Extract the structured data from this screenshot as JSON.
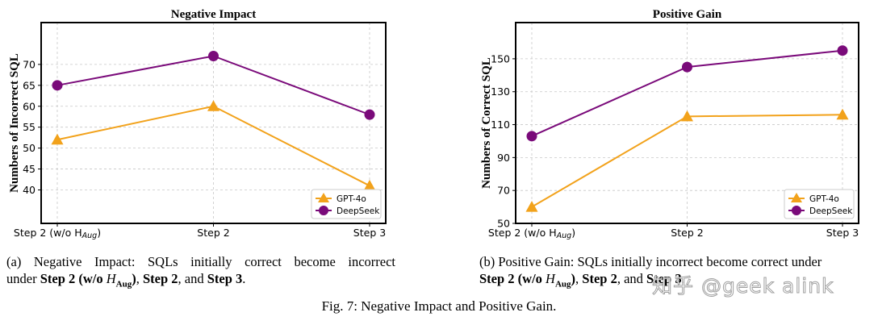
{
  "colors": {
    "gpt": "#f2a21b",
    "deepseek": "#7a0a7a",
    "grid": "#c8c8c8"
  },
  "chart_data": [
    {
      "type": "line",
      "title": "Negative Impact",
      "ylabel": "Numbers of Incorrect SQL",
      "categories": [
        "Step 2 (w/o H",
        "Step 2",
        "Step 3"
      ],
      "cat0_sub": "Aug",
      "cat0_close": ")",
      "ylim": [
        32,
        80
      ],
      "yticks": [
        40,
        45,
        50,
        55,
        60,
        65,
        70
      ],
      "series": [
        {
          "name": "GPT-4o",
          "values": [
            52,
            60,
            41
          ],
          "marker": "triangle"
        },
        {
          "name": "DeepSeek",
          "values": [
            65,
            72,
            58
          ],
          "marker": "circle"
        }
      ],
      "legend": "bottom-right",
      "grid": true
    },
    {
      "type": "line",
      "title": "Positive Gain",
      "ylabel": "Numbers of Correct SQL",
      "categories": [
        "Step 2 (w/o H",
        "Step 2",
        "Step 3"
      ],
      "cat0_sub": "Aug",
      "cat0_close": ")",
      "ylim": [
        50,
        172
      ],
      "yticks": [
        50,
        70,
        90,
        110,
        130,
        150
      ],
      "series": [
        {
          "name": "GPT-4o",
          "values": [
            60,
            115,
            116
          ],
          "marker": "triangle"
        },
        {
          "name": "DeepSeek",
          "values": [
            103,
            145,
            155
          ],
          "marker": "circle"
        }
      ],
      "legend": "bottom-right",
      "grid": true
    }
  ],
  "captions": {
    "a": {
      "prefix": "(a) Negative Impact: SQLs initially correct become incorrect",
      "line2_pre": "under ",
      "b1": "Step 2 (w/o ",
      "h": "H",
      "sub": "Aug",
      "b1_close": ")",
      "sep1": ", ",
      "b2": "Step 2",
      "sep2": ", and ",
      "b3": "Step 3",
      "end": "."
    },
    "b": {
      "prefix": "(b) Positive Gain: SQLs initially incorrect become correct under",
      "b1": "Step 2 (w/o ",
      "h": "H",
      "sub": "Aug",
      "b1_close": ")",
      "sep1": ", ",
      "b2": "Step 2",
      "sep2": ", and ",
      "b3": "Step 3",
      "end": "."
    },
    "figure": "Fig. 7: Negative Impact and Positive Gain."
  },
  "watermark": "知乎 @geek alink"
}
